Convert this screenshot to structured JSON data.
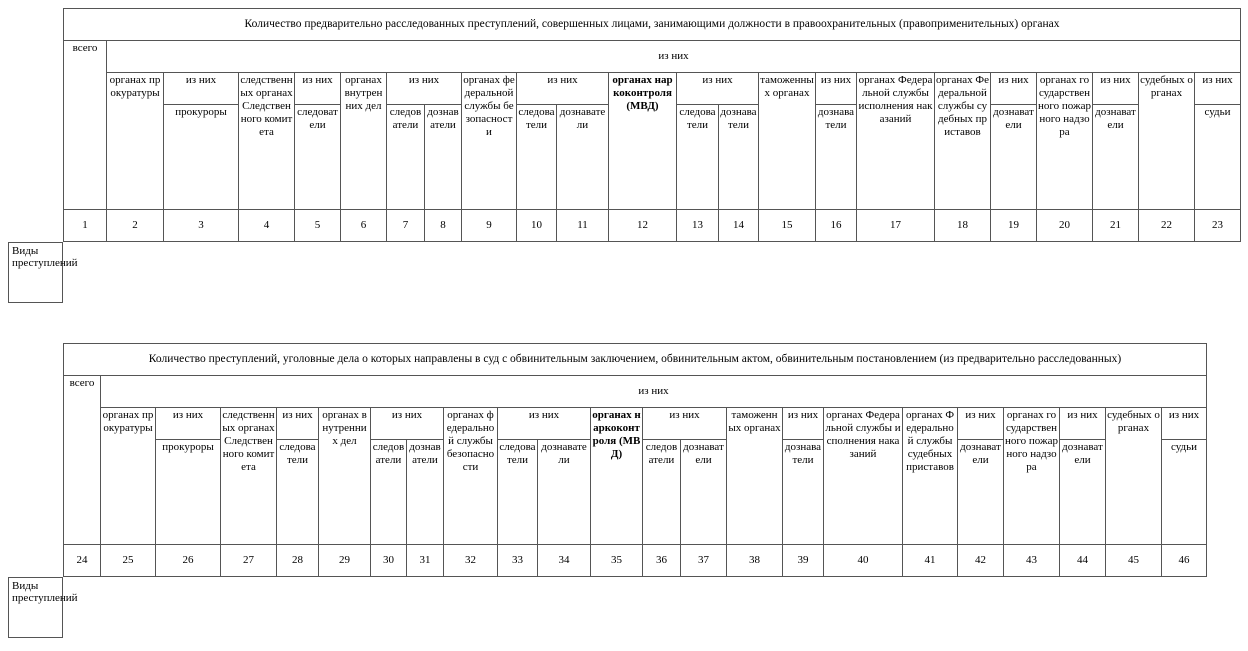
{
  "tables": [
    {
      "title": "Количество предварительно расследованных преступлений, совершенных лицами, занимающими должности в правоохранительных (правоприменительных) органах",
      "total": "всего",
      "subheader": "из них",
      "headers": [
        {
          "label": "органах прокуратуры"
        },
        {
          "label": "из них",
          "sub": [
            "прокуроры"
          ]
        },
        {
          "label": "следственных органах Следственного комитета"
        },
        {
          "label": "из них",
          "sub": [
            "следователи"
          ]
        },
        {
          "label": "органах внутренних дел"
        },
        {
          "label": "из них",
          "sub": [
            "следователи",
            "дознаватели"
          ]
        },
        {
          "label": "органах федеральной службы безопасности"
        },
        {
          "label": "из них",
          "sub": [
            "следователи",
            "дознаватели"
          ]
        },
        {
          "label": "органах наркоконтроля (МВД)",
          "bold": true
        },
        {
          "label": "из них",
          "sub": [
            "следователи",
            "дознаватели"
          ]
        },
        {
          "label": "таможенных органах"
        },
        {
          "label": "из них",
          "sub": [
            "дознаватели"
          ]
        },
        {
          "label": "органах Федеральной службы исполнения наказаний"
        },
        {
          "label": "органах Федеральной службы судебных приставов"
        },
        {
          "label": "из них",
          "sub": [
            "дознаватели"
          ]
        },
        {
          "label": "органах государственного пожарного надзора"
        },
        {
          "label": "из них",
          "sub": [
            "дознаватели"
          ]
        },
        {
          "label": "судебных органах"
        },
        {
          "label": "из них",
          "sub": [
            "судьи"
          ]
        }
      ],
      "numbers": [
        1,
        2,
        3,
        4,
        5,
        6,
        7,
        8,
        9,
        10,
        11,
        12,
        13,
        14,
        15,
        16,
        17,
        18,
        19,
        20,
        21,
        22,
        23
      ],
      "row_label": "Виды преступлений"
    },
    {
      "title": "Количество преступлений, уголовные дела о которых направлены в суд с обвинительным заключением, обвинительным актом, обвинительным постановлением (из предварительно расследованных)",
      "total": "всего",
      "subheader": "из них",
      "headers": [
        {
          "label": "органах прокуратуры"
        },
        {
          "label": "из них",
          "sub": [
            "прокуроры"
          ]
        },
        {
          "label": "следственных органах Следственного комитета"
        },
        {
          "label": "из них",
          "sub": [
            "следователи"
          ]
        },
        {
          "label": "органах внутренних дел"
        },
        {
          "label": "из них",
          "sub": [
            "следователи",
            "дознаватели"
          ]
        },
        {
          "label": "органах федеральной службы безопасности"
        },
        {
          "label": "из них",
          "sub": [
            "следователи",
            "дознаватели"
          ]
        },
        {
          "label": "органах наркоконтроля (МВД)",
          "bold": true
        },
        {
          "label": "из них",
          "sub": [
            "следователи",
            "дознаватели"
          ]
        },
        {
          "label": "таможенных органах"
        },
        {
          "label": "из них",
          "sub": [
            "дознаватели"
          ]
        },
        {
          "label": "органах Федеральной службы исполнения наказаний"
        },
        {
          "label": "органах Федеральной службы судебных приставов"
        },
        {
          "label": "из них",
          "sub": [
            "дознаватели"
          ]
        },
        {
          "label": "органах государственного пожарного надзора"
        },
        {
          "label": "из них",
          "sub": [
            "дознаватели"
          ]
        },
        {
          "label": "судебных органах"
        },
        {
          "label": "из них",
          "sub": [
            "судьи"
          ]
        }
      ],
      "numbers": [
        24,
        25,
        26,
        27,
        28,
        29,
        30,
        31,
        32,
        33,
        34,
        35,
        36,
        37,
        38,
        39,
        40,
        41,
        42,
        43,
        44,
        45,
        46
      ],
      "row_label": "Виды преступлений"
    }
  ]
}
